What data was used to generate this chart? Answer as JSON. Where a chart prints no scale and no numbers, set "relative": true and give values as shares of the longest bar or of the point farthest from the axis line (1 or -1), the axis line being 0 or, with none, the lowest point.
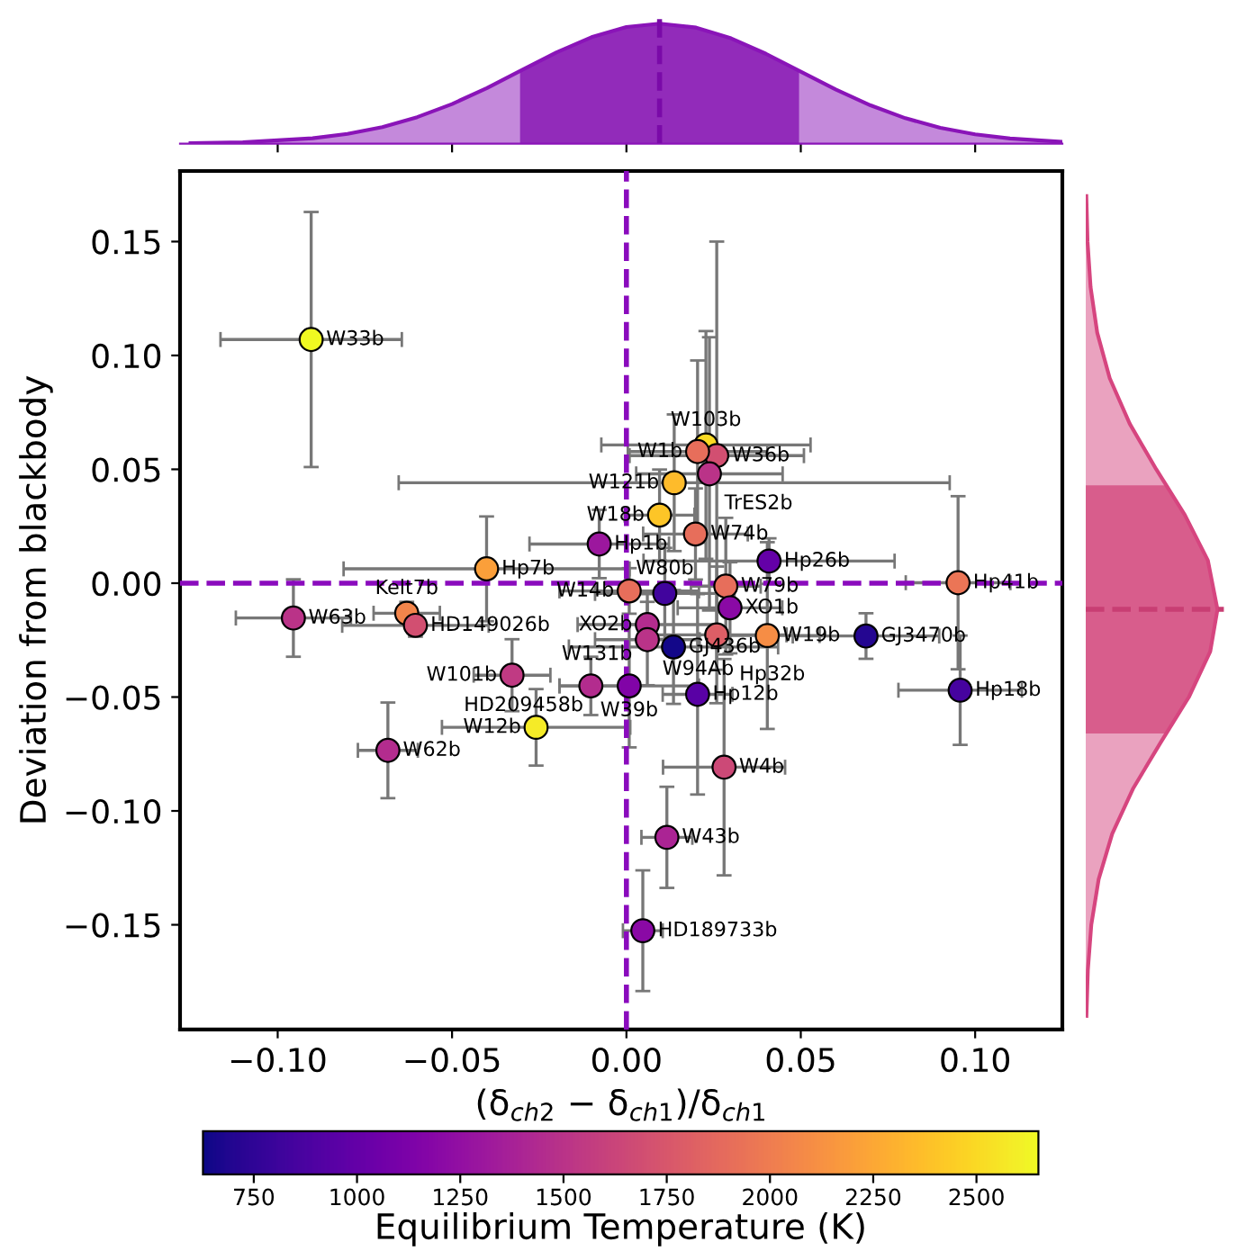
{
  "chart_data": [
    {
      "type": "scatter",
      "xlabel": "(δ$_{ch2}$ − δ$_{ch1}$)/δ$_{ch1}$",
      "ylabel": "Deviation from blackbody",
      "clabel": "Equilibrium Temperature (K)",
      "xlim": [
        -0.128,
        0.125
      ],
      "ylim": [
        -0.196,
        0.181
      ],
      "xticks": [
        {
          "value": -0.1,
          "label": "−0.10"
        },
        {
          "value": -0.05,
          "label": "−0.05"
        },
        {
          "value": 0,
          "label": "0.00"
        },
        {
          "value": 0.05,
          "label": "0.05"
        },
        {
          "value": 0.1,
          "label": "0.10"
        }
      ],
      "yticks": [
        {
          "value": -0.15,
          "label": "−0.15"
        },
        {
          "value": -0.1,
          "label": "−0.10"
        },
        {
          "value": -0.05,
          "label": "−0.05"
        },
        {
          "value": 0,
          "label": "0.00"
        },
        {
          "value": 0.05,
          "label": "0.05"
        },
        {
          "value": 0.1,
          "label": "0.10"
        },
        {
          "value": 0.15,
          "label": "0.15"
        }
      ],
      "clim": [
        627,
        2650
      ],
      "cticks": [
        750,
        1000,
        1250,
        1500,
        1750,
        2000,
        2250,
        2500
      ],
      "marker": "circle",
      "x": [
        -0.0904,
        -0.0401,
        0.0228,
        0.0259,
        0.0204,
        0.0238,
        0.0137,
        0.0095,
        0.0198,
        -0.0078,
        0.0409,
        0.0951,
        0.0957,
        0.0687,
        0.0404,
        0.0285,
        0.011,
        0.0297,
        0.006,
        0.006,
        0.0259,
        0.0135,
        0.0008,
        0.0204,
        0.0008,
        -0.0955,
        -0.063,
        -0.0605,
        -0.0328,
        -0.0102,
        -0.0259,
        -0.0684,
        0.028,
        0.0116,
        0.0047
      ],
      "values": [
        0.107,
        0.0063,
        0.0607,
        0.056,
        0.0578,
        0.048,
        0.0441,
        0.0299,
        0.0216,
        0.0172,
        0.0097,
        0.0002,
        -0.047,
        -0.0232,
        -0.023,
        -0.0013,
        -0.0045,
        -0.0108,
        -0.0182,
        -0.0248,
        -0.0227,
        -0.028,
        -0.0451,
        -0.0488,
        -0.0034,
        -0.0153,
        -0.0132,
        -0.0185,
        -0.0404,
        -0.0451,
        -0.0633,
        -0.0734,
        -0.0808,
        -0.1116,
        -0.1526
      ],
      "xerrors": [
        0.026,
        0.041,
        0.03,
        0.025,
        0.02,
        0.021,
        0.079,
        0.01,
        0.015,
        0.02,
        0.036,
        0.015,
        0.0177,
        0.021,
        0.015,
        0.01,
        0.02,
        0.015,
        0.02,
        0.015,
        0.02,
        0.03,
        0.02,
        0.01,
        0.02,
        0.0165,
        0.0095,
        0.021,
        0.011,
        0.009,
        0.027,
        0.0086,
        0.0175,
        0.0073,
        0.0057
      ],
      "errors": [
        0.056,
        0.023,
        0.05,
        0.094,
        0.04,
        0.06,
        0.03,
        0.02,
        0.02,
        0.015,
        0.01,
        0.038,
        0.024,
        0.01,
        0.041,
        0.03,
        0.02,
        0.02,
        0.01,
        0.02,
        0.03,
        0.025,
        0.027,
        0.044,
        0.01,
        0.017,
        0.005,
        0.005,
        0.0158,
        0.0128,
        0.0168,
        0.021,
        0.0475,
        0.0222,
        0.0265
      ],
      "cvalues": [
        2650,
        2200,
        2500,
        1700,
        1900,
        1500,
        2350,
        2400,
        1900,
        1300,
        1000,
        1950,
        850,
        700,
        2100,
        1900,
        830,
        1200,
        1450,
        1500,
        1800,
        650,
        1150,
        950,
        1900,
        1500,
        2050,
        1700,
        1550,
        1450,
        2580,
        1450,
        1650,
        1400,
        1200
      ],
      "annotations": [
        {
          "text": "W33b",
          "x": -0.0904,
          "y": 0.107
        },
        {
          "text": "Hp7b",
          "x": -0.0401,
          "y": 0.0063
        },
        {
          "text": "W103b",
          "x": 0.0228,
          "y": 0.0607
        },
        {
          "text": "W36b",
          "x": 0.0259,
          "y": 0.056
        },
        {
          "text": "W1b",
          "x": 0.0204,
          "y": 0.0578
        },
        {
          "text": "TrES2b",
          "x": 0.0238,
          "y": 0.048
        },
        {
          "text": "W121b",
          "x": 0.0137,
          "y": 0.0441
        },
        {
          "text": "W18b",
          "x": 0.0095,
          "y": 0.0299
        },
        {
          "text": "W74b",
          "x": 0.0198,
          "y": 0.0216
        },
        {
          "text": "Hp1b",
          "x": -0.0078,
          "y": 0.0172
        },
        {
          "text": "Hp26b",
          "x": 0.0409,
          "y": 0.0097
        },
        {
          "text": "Hp41b",
          "x": 0.0951,
          "y": 0.0002
        },
        {
          "text": "Hp18b",
          "x": 0.0957,
          "y": -0.047
        },
        {
          "text": "GJ3470b",
          "x": 0.0687,
          "y": -0.0232
        },
        {
          "text": "W19b",
          "x": 0.0404,
          "y": -0.023
        },
        {
          "text": "W79b",
          "x": 0.0285,
          "y": -0.0013
        },
        {
          "text": "W80b",
          "x": 0.011,
          "y": -0.0045
        },
        {
          "text": "XO1b",
          "x": 0.0297,
          "y": -0.0108
        },
        {
          "text": "XO2b",
          "x": 0.006,
          "y": -0.0182
        },
        {
          "text": "W131b",
          "x": 0.006,
          "y": -0.0182
        },
        {
          "text": "W94Ab",
          "x": 0.006,
          "y": -0.0248
        },
        {
          "text": "Hp32b",
          "x": 0.0259,
          "y": -0.0227
        },
        {
          "text": "GJ436b",
          "x": 0.0135,
          "y": -0.028
        },
        {
          "text": "W39b",
          "x": 0.0008,
          "y": -0.0451
        },
        {
          "text": "Hp12b",
          "x": 0.0204,
          "y": -0.0488
        },
        {
          "text": "W14b",
          "x": 0.0008,
          "y": -0.0034
        },
        {
          "text": "W63b",
          "x": -0.0955,
          "y": -0.0153
        },
        {
          "text": "Kelt7b",
          "x": -0.063,
          "y": -0.0132
        },
        {
          "text": "HD149026b",
          "x": -0.0605,
          "y": -0.0185
        },
        {
          "text": "W101b",
          "x": -0.0328,
          "y": -0.0404
        },
        {
          "text": "HD209458b",
          "x": -0.0102,
          "y": -0.0451
        },
        {
          "text": "W12b",
          "x": -0.0259,
          "y": -0.0633
        },
        {
          "text": "W62b",
          "x": -0.0684,
          "y": -0.0734
        },
        {
          "text": "W4b",
          "x": 0.028,
          "y": -0.0808
        },
        {
          "text": "W43b",
          "x": 0.0116,
          "y": -0.1116
        },
        {
          "text": "HD189733b",
          "x": 0.0047,
          "y": -0.1526
        }
      ],
      "ref_lines": [
        {
          "axis": "x",
          "value": 0,
          "color": "#8a0bbd",
          "line_style": "dashed"
        },
        {
          "axis": "y",
          "value": 0,
          "color": "#8a0bbd",
          "line_style": "dashed"
        }
      ]
    },
    {
      "type": "area",
      "relative": true,
      "tick_labels": false,
      "color": "#8a14b8",
      "xlim": [
        -0.128,
        0.125
      ],
      "xticks": [
        {
          "value": -0.1,
          "label": null
        },
        {
          "value": -0.05,
          "label": null
        },
        {
          "value": 0,
          "label": null
        },
        {
          "value": 0.05,
          "label": null
        },
        {
          "value": 0.1,
          "label": null
        }
      ],
      "x": [
        -0.125,
        -0.11,
        -0.09,
        -0.08,
        -0.07,
        -0.06,
        -0.05,
        -0.04,
        -0.03,
        -0.02,
        -0.01,
        0.0,
        0.0095,
        0.02,
        0.03,
        0.04,
        0.05,
        0.06,
        0.07,
        0.08,
        0.09,
        0.1,
        0.11,
        0.125
      ],
      "values": [
        0.0035,
        0.011,
        0.045,
        0.081,
        0.138,
        0.221,
        0.33,
        0.463,
        0.613,
        0.761,
        0.887,
        0.972,
        1,
        0.967,
        0.878,
        0.749,
        0.6,
        0.452,
        0.319,
        0.212,
        0.132,
        0.078,
        0.043,
        0.015
      ],
      "ref_lines": [
        {
          "axis": "x",
          "value": 0.0095,
          "color": "#7a0aa8",
          "line_style": "dashed"
        }
      ],
      "bands": [
        {
          "axis": "x",
          "from": -0.0305,
          "to": 0.0495,
          "color": "#9b42bd"
        }
      ]
    },
    {
      "type": "area",
      "relative": true,
      "orientation": "horizontal",
      "color": "#d6457f",
      "ylim": [
        -0.196,
        0.181
      ],
      "x": [
        -0.19,
        -0.17,
        -0.15,
        -0.13,
        -0.11,
        -0.09,
        -0.07,
        -0.05,
        -0.03,
        -0.0115,
        0.01,
        0.03,
        0.05,
        0.07,
        0.09,
        0.11,
        0.13,
        0.15,
        0.17
      ],
      "values": [
        0.0051,
        0.0158,
        0.042,
        0.098,
        0.201,
        0.361,
        0.568,
        0.783,
        0.945,
        1,
        0.927,
        0.752,
        0.535,
        0.334,
        0.182,
        0.087,
        0.0366,
        0.0134,
        0.0043
      ],
      "ref_lines": [
        {
          "axis": "y",
          "value": -0.0115,
          "color": "#c83e73",
          "line_style": "dashed"
        }
      ],
      "bands": [
        {
          "axis": "y",
          "from": -0.066,
          "to": 0.043,
          "color": "#db7499"
        }
      ]
    }
  ]
}
